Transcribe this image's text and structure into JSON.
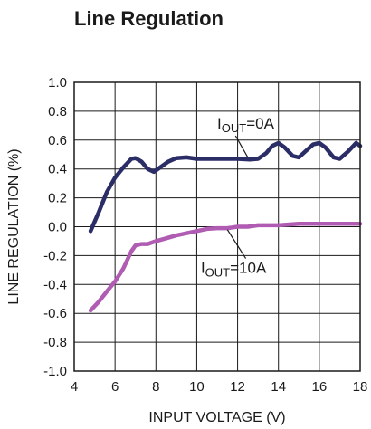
{
  "chart_data": {
    "type": "line",
    "title": "Line Regulation",
    "xlabel": "INPUT VOLTAGE (V)",
    "ylabel": "LINE REGULATION (%)",
    "xlim": [
      4,
      18
    ],
    "ylim": [
      -1.0,
      1.0
    ],
    "x_ticks": [
      4,
      6,
      8,
      10,
      12,
      14,
      16,
      18
    ],
    "x_tick_labels": [
      "4",
      "6",
      "8",
      "10",
      "12",
      "14",
      "16",
      "18"
    ],
    "y_ticks": [
      1.0,
      0.8,
      0.6,
      0.4,
      0.2,
      0.0,
      -0.2,
      -0.4,
      -0.6,
      -0.8,
      -1.0
    ],
    "y_tick_labels": [
      "1.0",
      "0.8",
      "0.6",
      "0.4",
      "0.2",
      "0.0",
      "-0.2",
      "-0.4",
      "-0.6",
      "-0.8",
      "-1.0"
    ],
    "grid": true,
    "series": [
      {
        "name": "IOUT=0A",
        "label_main": "I",
        "label_sub": "OUT",
        "label_rest": "=0A",
        "color": "#2b2d66",
        "points": [
          [
            4.8,
            -0.03
          ],
          [
            5.2,
            0.1
          ],
          [
            5.6,
            0.24
          ],
          [
            6.0,
            0.34
          ],
          [
            6.4,
            0.41
          ],
          [
            6.8,
            0.47
          ],
          [
            7.0,
            0.475
          ],
          [
            7.3,
            0.45
          ],
          [
            7.6,
            0.4
          ],
          [
            7.9,
            0.38
          ],
          [
            8.2,
            0.41
          ],
          [
            8.6,
            0.45
          ],
          [
            9.0,
            0.475
          ],
          [
            9.5,
            0.48
          ],
          [
            10.0,
            0.47
          ],
          [
            11.0,
            0.47
          ],
          [
            12.0,
            0.47
          ],
          [
            12.6,
            0.465
          ],
          [
            13.0,
            0.47
          ],
          [
            13.4,
            0.51
          ],
          [
            13.7,
            0.56
          ],
          [
            14.0,
            0.58
          ],
          [
            14.3,
            0.55
          ],
          [
            14.7,
            0.49
          ],
          [
            15.0,
            0.48
          ],
          [
            15.3,
            0.52
          ],
          [
            15.7,
            0.57
          ],
          [
            16.0,
            0.58
          ],
          [
            16.3,
            0.55
          ],
          [
            16.7,
            0.48
          ],
          [
            17.0,
            0.47
          ],
          [
            17.4,
            0.52
          ],
          [
            17.8,
            0.58
          ],
          [
            18.0,
            0.56
          ]
        ]
      },
      {
        "name": "IOUT=10A",
        "label_main": "I",
        "label_sub": "OUT",
        "label_rest": "=10A",
        "color": "#b05cb3",
        "points": [
          [
            4.8,
            -0.58
          ],
          [
            5.2,
            -0.52
          ],
          [
            5.7,
            -0.43
          ],
          [
            6.0,
            -0.38
          ],
          [
            6.4,
            -0.29
          ],
          [
            6.8,
            -0.17
          ],
          [
            7.0,
            -0.13
          ],
          [
            7.3,
            -0.12
          ],
          [
            7.6,
            -0.12
          ],
          [
            8.0,
            -0.1
          ],
          [
            8.5,
            -0.08
          ],
          [
            9.0,
            -0.06
          ],
          [
            9.5,
            -0.045
          ],
          [
            10.0,
            -0.03
          ],
          [
            10.5,
            -0.015
          ],
          [
            11.0,
            -0.01
          ],
          [
            11.5,
            -0.01
          ],
          [
            12.0,
            0.0
          ],
          [
            12.5,
            0.0
          ],
          [
            13.0,
            0.01
          ],
          [
            14.0,
            0.01
          ],
          [
            15.0,
            0.02
          ],
          [
            16.0,
            0.02
          ],
          [
            17.0,
            0.02
          ],
          [
            18.0,
            0.02
          ]
        ]
      }
    ],
    "annotations": [
      {
        "series": 0,
        "text_x": 11.0,
        "text_y": 0.68,
        "pointer_from": [
          11.9,
          0.63
        ],
        "pointer_to": [
          12.5,
          0.48
        ]
      },
      {
        "series": 1,
        "text_x": 10.2,
        "text_y": -0.32,
        "pointer_from": [
          12.4,
          -0.22
        ],
        "pointer_to": [
          11.5,
          -0.02
        ]
      }
    ]
  }
}
